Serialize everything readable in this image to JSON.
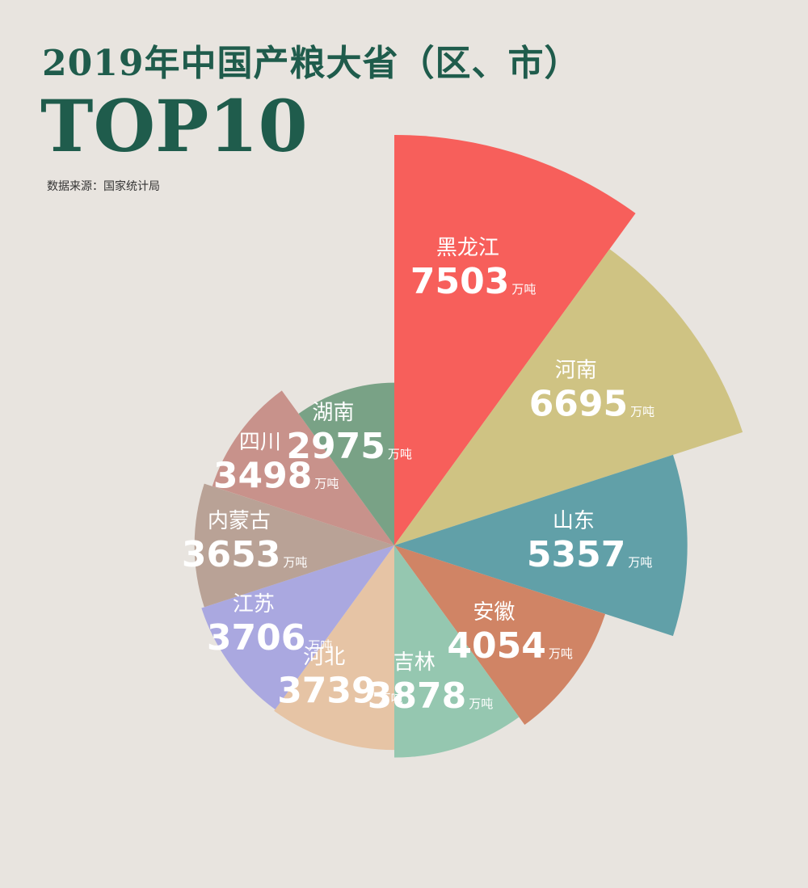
{
  "header": {
    "title": "2019年中国产粮大省（区、市）",
    "subtitle": "TOP10",
    "source": "数据来源：国家统计局"
  },
  "chart_data": {
    "type": "pie",
    "unit": "万吨",
    "categories": [
      "黑龙江",
      "河南",
      "山东",
      "安徽",
      "吉林",
      "河北",
      "江苏",
      "内蒙古",
      "四川",
      "湖南"
    ],
    "values": [
      7503,
      6695,
      5357,
      4054,
      3878,
      3739,
      3706,
      3653,
      3498,
      2975
    ],
    "colors": [
      "#f75f5b",
      "#cfc383",
      "#61a0a8",
      "#d08465",
      "#95c7b0",
      "#e6c4a5",
      "#aaa8e0",
      "#b9a296",
      "#c8928b",
      "#79a286"
    ]
  }
}
